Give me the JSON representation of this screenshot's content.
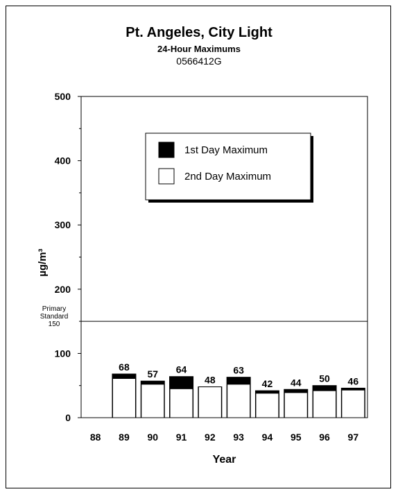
{
  "chart_data": {
    "type": "bar",
    "title": "Pt. Angeles, City Light",
    "subtitle": "24-Hour Maximums",
    "site_id": "0566412G",
    "xlabel": "Year",
    "ylabel": "µg/m³",
    "ylim": [
      0,
      500
    ],
    "yticks": [
      0,
      100,
      200,
      300,
      400,
      500
    ],
    "categories": [
      "88",
      "89",
      "90",
      "91",
      "92",
      "93",
      "94",
      "95",
      "96",
      "97"
    ],
    "series": [
      {
        "name": "1st Day Maximum",
        "color": "#000000",
        "values": [
          null,
          68,
          57,
          64,
          48,
          63,
          42,
          44,
          50,
          46
        ]
      },
      {
        "name": "2nd Day Maximum",
        "color": "#ffffff",
        "values": [
          null,
          61,
          52,
          45,
          48,
          52,
          38,
          39,
          42,
          43
        ]
      }
    ],
    "bar_labels": [
      null,
      "68",
      "57",
      "64",
      "48",
      "63",
      "42",
      "44",
      "50",
      "46"
    ],
    "reference_line": {
      "value": 150,
      "label_lines": [
        "Primary",
        "Standard",
        "150"
      ]
    },
    "legend_position": "top-right",
    "grid": false
  }
}
